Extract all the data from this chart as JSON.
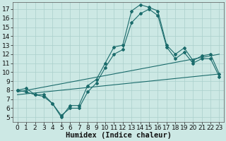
{
  "xlabel": "Humidex (Indice chaleur)",
  "bg_color": "#cce8e4",
  "grid_color": "#aacfcb",
  "line_color": "#1a6b6b",
  "xlim": [
    -0.5,
    23.5
  ],
  "ylim": [
    4.5,
    17.8
  ],
  "xticks": [
    0,
    1,
    2,
    3,
    4,
    5,
    6,
    7,
    8,
    9,
    10,
    11,
    12,
    13,
    14,
    15,
    16,
    17,
    18,
    19,
    20,
    21,
    22,
    23
  ],
  "yticks": [
    5,
    6,
    7,
    8,
    9,
    10,
    11,
    12,
    13,
    14,
    15,
    16,
    17
  ],
  "curve1_x": [
    0,
    1,
    2,
    3,
    4,
    5,
    6,
    7,
    8,
    9,
    10,
    11,
    12,
    13,
    14,
    15,
    16,
    17,
    18,
    19,
    20,
    21,
    22,
    23
  ],
  "curve1_y": [
    8.0,
    8.2,
    7.5,
    7.5,
    6.5,
    5.0,
    6.3,
    6.3,
    8.5,
    9.2,
    11.0,
    12.8,
    13.0,
    16.8,
    17.5,
    17.2,
    16.8,
    13.0,
    12.0,
    12.7,
    11.3,
    11.8,
    12.0,
    9.8
  ],
  "curve2_x": [
    0,
    1,
    2,
    3,
    4,
    5,
    6,
    7,
    8,
    9,
    10,
    11,
    12,
    13,
    14,
    15,
    16,
    17,
    18,
    19,
    20,
    21,
    22,
    23
  ],
  "curve2_y": [
    8.0,
    7.8,
    7.5,
    7.3,
    6.5,
    5.2,
    6.0,
    6.0,
    7.8,
    8.8,
    10.5,
    12.0,
    12.5,
    15.5,
    16.5,
    17.0,
    16.3,
    12.8,
    11.5,
    12.2,
    11.0,
    11.5,
    11.5,
    9.5
  ],
  "line1_x": [
    0,
    23
  ],
  "line1_y": [
    7.8,
    12.0
  ],
  "line2_x": [
    0,
    23
  ],
  "line2_y": [
    7.5,
    9.8
  ],
  "tick_fontsize": 6.5,
  "xlabel_fontsize": 7.5
}
